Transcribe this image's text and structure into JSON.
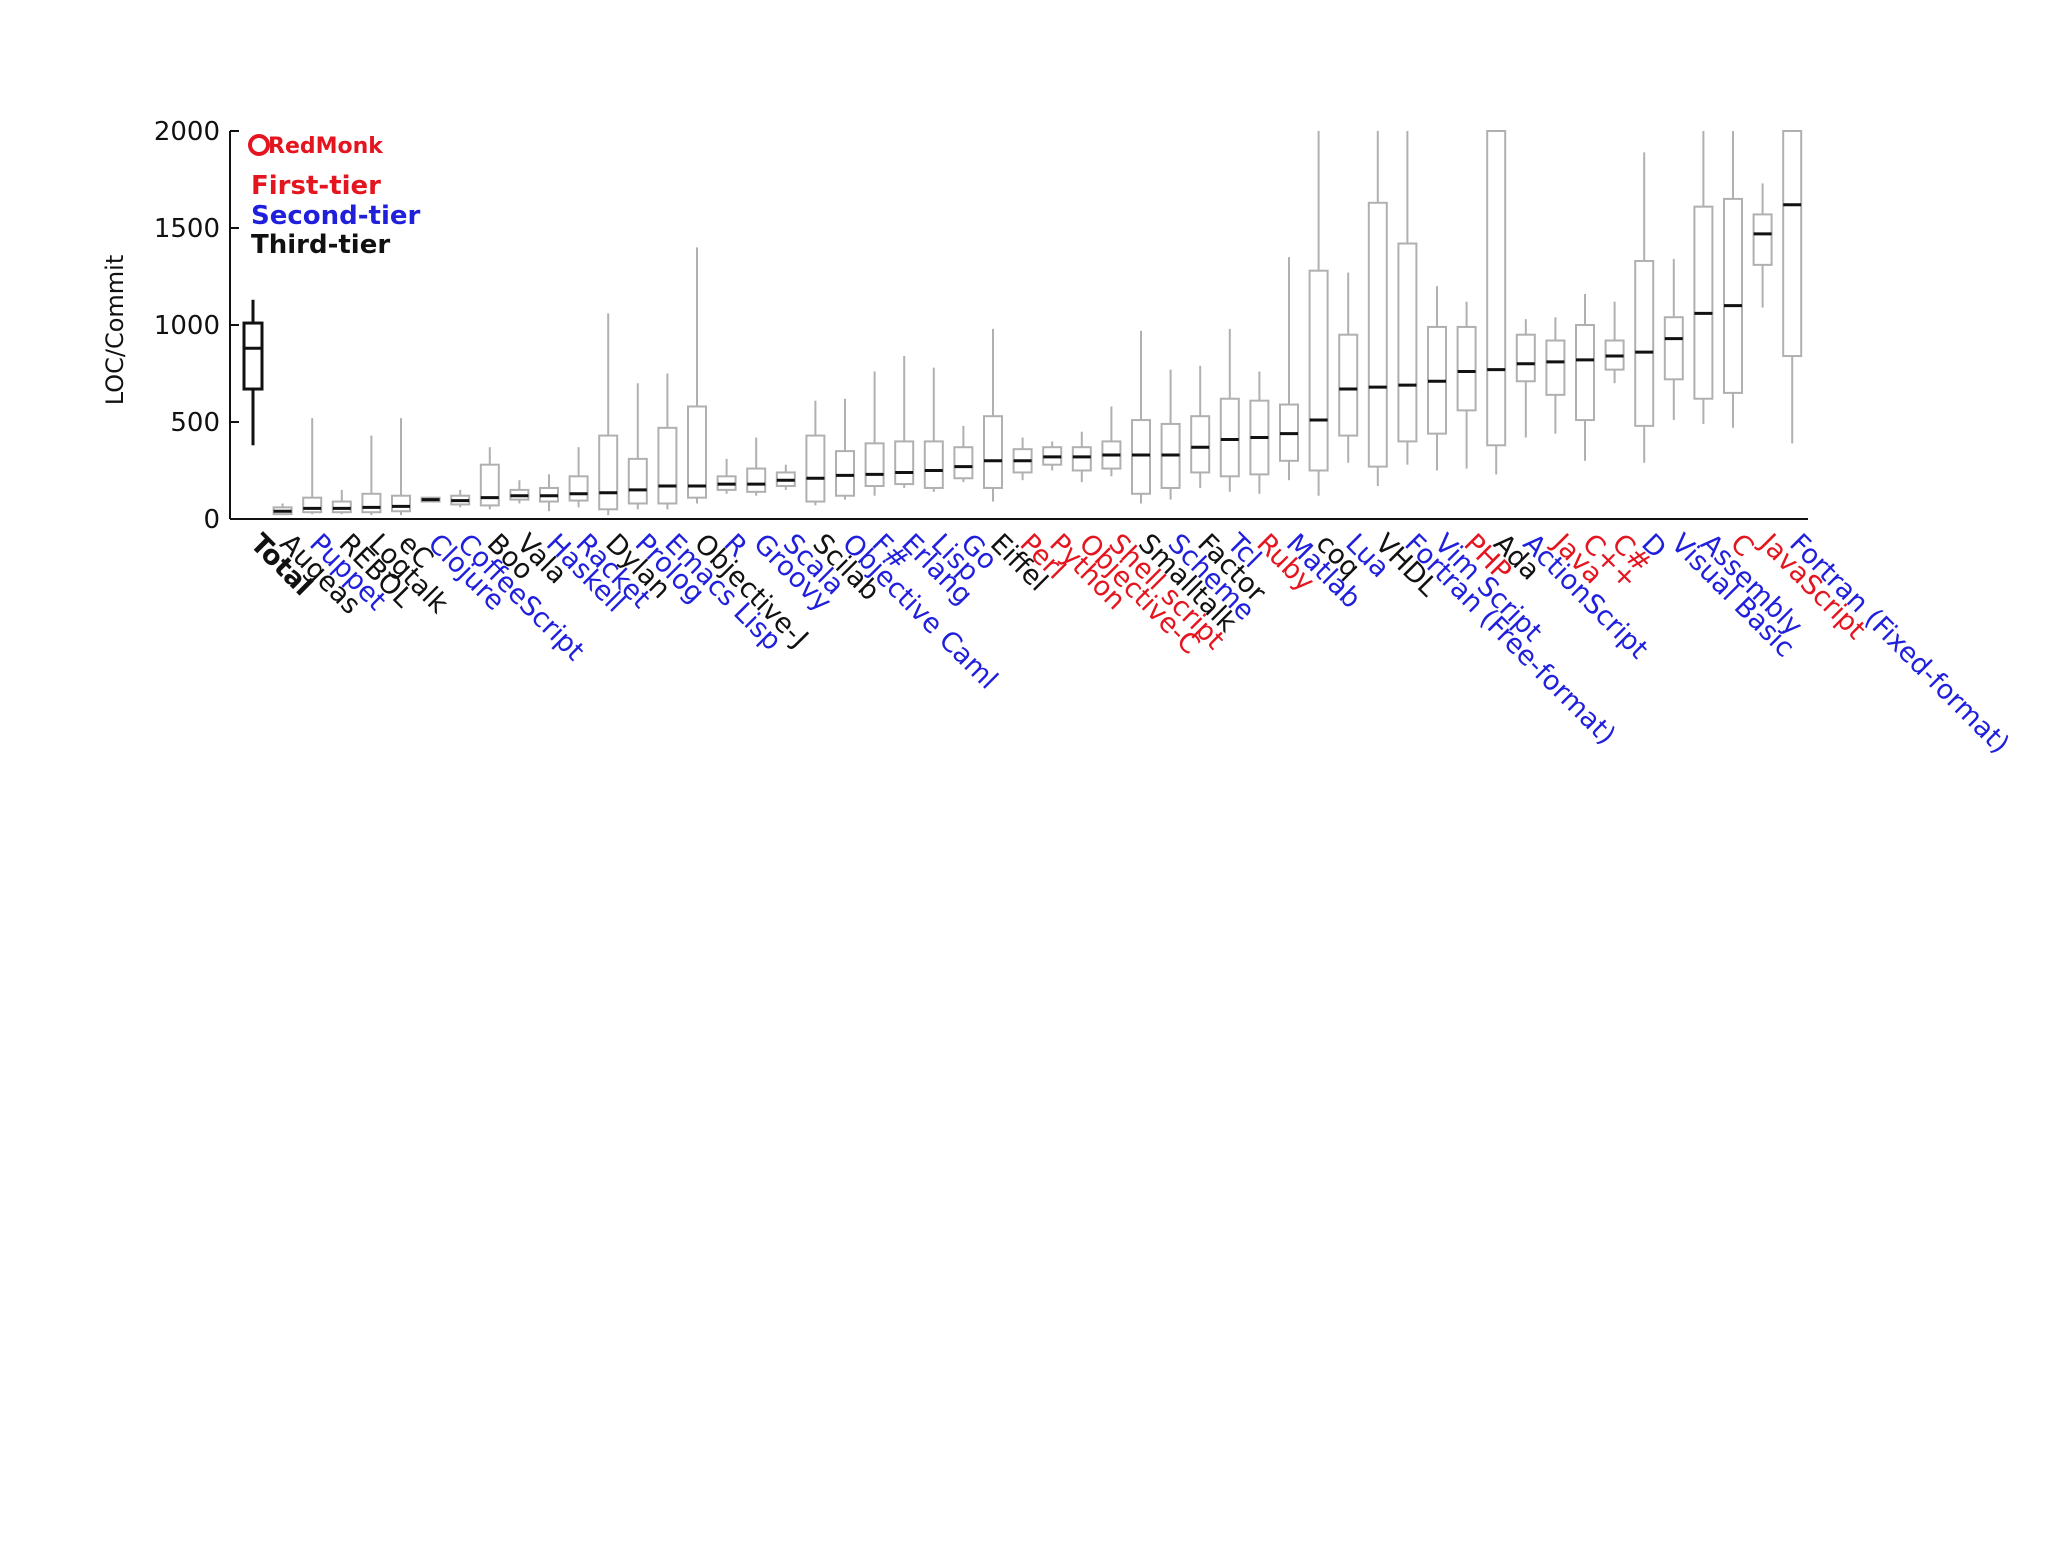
{
  "chart_data": {
    "type": "box",
    "title": "",
    "xlabel": "",
    "ylabel": "LOC/Commit",
    "ylim": [
      0,
      2000
    ],
    "yticks": [
      0,
      500,
      1000,
      1500,
      2000
    ],
    "grid": false,
    "legend": {
      "placement": "top-left",
      "logo": "RedMonk",
      "entries": [
        {
          "label": "First-tier",
          "color": "#e4151f"
        },
        {
          "label": "Second-tier",
          "color": "#1f1fdc"
        },
        {
          "label": "Third-tier",
          "color": "#111111"
        }
      ]
    },
    "tier_colors": {
      "first": "#e4151f",
      "second": "#1f1fdc",
      "third": "#111111",
      "total": "#111111"
    },
    "box_color": "#b0b0b0",
    "median_color": "#111111",
    "series": [
      {
        "name": "Total",
        "tier": "total",
        "whisker_low": 380,
        "q1": 670,
        "median": 880,
        "q3": 1010,
        "whisker_high": 1130
      },
      {
        "name": "Augeas",
        "tier": "third",
        "whisker_low": 20,
        "q1": 25,
        "median": 40,
        "q3": 60,
        "whisker_high": 80
      },
      {
        "name": "Puppet",
        "tier": "second",
        "whisker_low": 25,
        "q1": 35,
        "median": 55,
        "q3": 110,
        "whisker_high": 520
      },
      {
        "name": "REBOL",
        "tier": "third",
        "whisker_low": 25,
        "q1": 35,
        "median": 55,
        "q3": 90,
        "whisker_high": 150
      },
      {
        "name": "Logtalk",
        "tier": "third",
        "whisker_low": 20,
        "q1": 35,
        "median": 60,
        "q3": 130,
        "whisker_high": 430
      },
      {
        "name": "eC",
        "tier": "third",
        "whisker_low": 20,
        "q1": 40,
        "median": 65,
        "q3": 120,
        "whisker_high": 520
      },
      {
        "name": "Clojure",
        "tier": "second",
        "whisker_low": 85,
        "q1": 90,
        "median": 100,
        "q3": 110,
        "whisker_high": 115
      },
      {
        "name": "CoffeeScript",
        "tier": "second",
        "whisker_low": 60,
        "q1": 75,
        "median": 95,
        "q3": 120,
        "whisker_high": 150
      },
      {
        "name": "Boo",
        "tier": "third",
        "whisker_low": 50,
        "q1": 70,
        "median": 110,
        "q3": 280,
        "whisker_high": 370
      },
      {
        "name": "Vala",
        "tier": "third",
        "whisker_low": 80,
        "q1": 100,
        "median": 120,
        "q3": 150,
        "whisker_high": 200
      },
      {
        "name": "Haskell",
        "tier": "second",
        "whisker_low": 40,
        "q1": 90,
        "median": 120,
        "q3": 160,
        "whisker_high": 230
      },
      {
        "name": "Racket",
        "tier": "second",
        "whisker_low": 60,
        "q1": 95,
        "median": 130,
        "q3": 220,
        "whisker_high": 370
      },
      {
        "name": "Dylan",
        "tier": "third",
        "whisker_low": 20,
        "q1": 50,
        "median": 135,
        "q3": 430,
        "whisker_high": 1060
      },
      {
        "name": "Prolog",
        "tier": "second",
        "whisker_low": 50,
        "q1": 80,
        "median": 150,
        "q3": 310,
        "whisker_high": 700
      },
      {
        "name": "Emacs Lisp",
        "tier": "second",
        "whisker_low": 50,
        "q1": 80,
        "median": 170,
        "q3": 470,
        "whisker_high": 750
      },
      {
        "name": "Objective-J",
        "tier": "third",
        "whisker_low": 80,
        "q1": 110,
        "median": 170,
        "q3": 580,
        "whisker_high": 1400
      },
      {
        "name": "R",
        "tier": "second",
        "whisker_low": 130,
        "q1": 150,
        "median": 180,
        "q3": 220,
        "whisker_high": 310
      },
      {
        "name": "Groovy",
        "tier": "second",
        "whisker_low": 120,
        "q1": 140,
        "median": 180,
        "q3": 260,
        "whisker_high": 420
      },
      {
        "name": "Scala",
        "tier": "second",
        "whisker_low": 150,
        "q1": 170,
        "median": 200,
        "q3": 240,
        "whisker_high": 280
      },
      {
        "name": "Scilab",
        "tier": "third",
        "whisker_low": 70,
        "q1": 90,
        "median": 210,
        "q3": 430,
        "whisker_high": 610
      },
      {
        "name": "Objective Caml",
        "tier": "second",
        "whisker_low": 100,
        "q1": 120,
        "median": 225,
        "q3": 350,
        "whisker_high": 620
      },
      {
        "name": "F#",
        "tier": "second",
        "whisker_low": 120,
        "q1": 170,
        "median": 230,
        "q3": 390,
        "whisker_high": 760
      },
      {
        "name": "Erlang",
        "tier": "second",
        "whisker_low": 160,
        "q1": 180,
        "median": 240,
        "q3": 400,
        "whisker_high": 840
      },
      {
        "name": "Lisp",
        "tier": "second",
        "whisker_low": 140,
        "q1": 160,
        "median": 250,
        "q3": 400,
        "whisker_high": 780
      },
      {
        "name": "Go",
        "tier": "second",
        "whisker_low": 190,
        "q1": 210,
        "median": 270,
        "q3": 370,
        "whisker_high": 480
      },
      {
        "name": "Eiffel",
        "tier": "third",
        "whisker_low": 90,
        "q1": 160,
        "median": 300,
        "q3": 530,
        "whisker_high": 980
      },
      {
        "name": "Perl",
        "tier": "first",
        "whisker_low": 200,
        "q1": 240,
        "median": 300,
        "q3": 360,
        "whisker_high": 420
      },
      {
        "name": "Python",
        "tier": "first",
        "whisker_low": 250,
        "q1": 280,
        "median": 320,
        "q3": 370,
        "whisker_high": 400
      },
      {
        "name": "Objective-C",
        "tier": "first",
        "whisker_low": 190,
        "q1": 250,
        "median": 320,
        "q3": 370,
        "whisker_high": 450
      },
      {
        "name": "Shell script",
        "tier": "first",
        "whisker_low": 220,
        "q1": 260,
        "median": 330,
        "q3": 400,
        "whisker_high": 580
      },
      {
        "name": "Smalltalk",
        "tier": "third",
        "whisker_low": 80,
        "q1": 130,
        "median": 330,
        "q3": 510,
        "whisker_high": 970
      },
      {
        "name": "Scheme",
        "tier": "second",
        "whisker_low": 100,
        "q1": 160,
        "median": 330,
        "q3": 490,
        "whisker_high": 770
      },
      {
        "name": "Factor",
        "tier": "third",
        "whisker_low": 160,
        "q1": 240,
        "median": 370,
        "q3": 530,
        "whisker_high": 790
      },
      {
        "name": "Tcl",
        "tier": "second",
        "whisker_low": 140,
        "q1": 220,
        "median": 410,
        "q3": 620,
        "whisker_high": 980
      },
      {
        "name": "Ruby",
        "tier": "first",
        "whisker_low": 130,
        "q1": 230,
        "median": 420,
        "q3": 610,
        "whisker_high": 760
      },
      {
        "name": "Matlab",
        "tier": "second",
        "whisker_low": 200,
        "q1": 300,
        "median": 440,
        "q3": 590,
        "whisker_high": 1350
      },
      {
        "name": "coq",
        "tier": "third",
        "whisker_low": 120,
        "q1": 250,
        "median": 510,
        "q3": 1280,
        "whisker_high": 2000
      },
      {
        "name": "Lua",
        "tier": "second",
        "whisker_low": 290,
        "q1": 430,
        "median": 670,
        "q3": 950,
        "whisker_high": 1270
      },
      {
        "name": "VHDL",
        "tier": "third",
        "whisker_low": 170,
        "q1": 270,
        "median": 680,
        "q3": 1630,
        "whisker_high": 2000
      },
      {
        "name": "Fortran (Free-format)",
        "tier": "second",
        "whisker_low": 280,
        "q1": 400,
        "median": 690,
        "q3": 1420,
        "whisker_high": 2000
      },
      {
        "name": "Vim Script",
        "tier": "second",
        "whisker_low": 250,
        "q1": 440,
        "median": 710,
        "q3": 990,
        "whisker_high": 1200
      },
      {
        "name": "PHP",
        "tier": "first",
        "whisker_low": 260,
        "q1": 560,
        "median": 760,
        "q3": 990,
        "whisker_high": 1120
      },
      {
        "name": "Ada",
        "tier": "third",
        "whisker_low": 230,
        "q1": 380,
        "median": 770,
        "q3": 2000,
        "whisker_high": 2000
      },
      {
        "name": "ActionScript",
        "tier": "second",
        "whisker_low": 420,
        "q1": 710,
        "median": 800,
        "q3": 950,
        "whisker_high": 1030
      },
      {
        "name": "Java",
        "tier": "first",
        "whisker_low": 440,
        "q1": 640,
        "median": 810,
        "q3": 920,
        "whisker_high": 1040
      },
      {
        "name": "C++",
        "tier": "first",
        "whisker_low": 300,
        "q1": 510,
        "median": 820,
        "q3": 1000,
        "whisker_high": 1160
      },
      {
        "name": "C#",
        "tier": "first",
        "whisker_low": 700,
        "q1": 770,
        "median": 840,
        "q3": 920,
        "whisker_high": 1120
      },
      {
        "name": "D",
        "tier": "second",
        "whisker_low": 290,
        "q1": 480,
        "median": 860,
        "q3": 1330,
        "whisker_high": 1890
      },
      {
        "name": "Visual Basic",
        "tier": "second",
        "whisker_low": 510,
        "q1": 720,
        "median": 930,
        "q3": 1040,
        "whisker_high": 1340
      },
      {
        "name": "Assembly",
        "tier": "second",
        "whisker_low": 490,
        "q1": 620,
        "median": 1060,
        "q3": 1610,
        "whisker_high": 2000
      },
      {
        "name": "C",
        "tier": "first",
        "whisker_low": 470,
        "q1": 650,
        "median": 1100,
        "q3": 1650,
        "whisker_high": 2000
      },
      {
        "name": "JavaScript",
        "tier": "first",
        "whisker_low": 1090,
        "q1": 1310,
        "median": 1470,
        "q3": 1570,
        "whisker_high": 1730
      },
      {
        "name": "Fortran (Fixed-format)",
        "tier": "second",
        "whisker_low": 390,
        "q1": 840,
        "median": 1620,
        "q3": 2000,
        "whisker_high": 2000
      }
    ]
  }
}
